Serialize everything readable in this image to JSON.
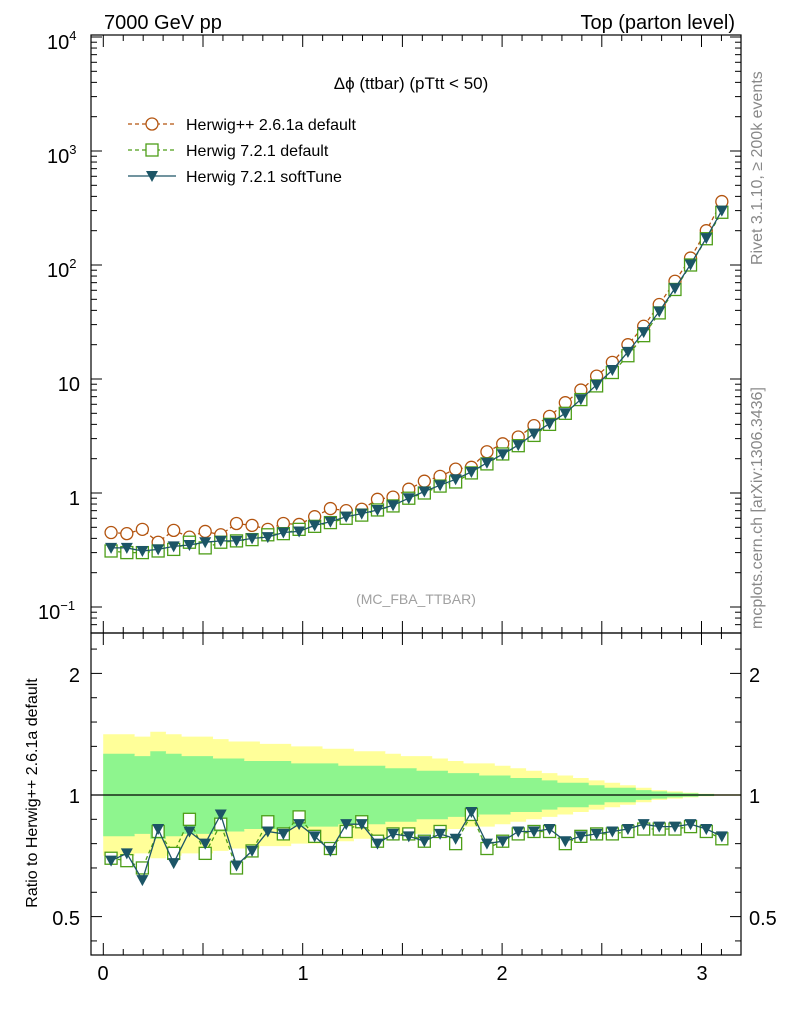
{
  "header": {
    "left": "7000 GeV pp",
    "right": "Top (parton level)"
  },
  "plot_title": "Δϕ (ttbar) (pTtt < 50)",
  "analysis_tag": "(MC_FBA_TTBAR)",
  "side_text": {
    "rivet": "Rivet 3.1.10, ≥ 200k events",
    "mcplots": "mcplots.cern.ch [arXiv:1306.3436]"
  },
  "legend": [
    {
      "name": "Herwig++ 2.6.1a default",
      "color": "#b3540f",
      "marker": "circle-open",
      "line": "dashed"
    },
    {
      "name": "Herwig 7.2.1 default",
      "color": "#4d9e18",
      "marker": "square-open",
      "line": "dashed"
    },
    {
      "name": "Herwig 7.2.1 softTune",
      "color": "#1c5566",
      "marker": "triangle-down-filled",
      "line": "solid"
    }
  ],
  "top_ylabels": {
    "e4_base": "10",
    "e4_exp": "4",
    "e3_base": "10",
    "e3_exp": "3",
    "e2_base": "10",
    "e2_exp": "2",
    "e1": "10",
    "e0": "1",
    "em1_base": "10",
    "em1_exp": "−1"
  },
  "ratio_ylabel": "Ratio to Herwig++ 2.6.1a default",
  "ratio_ylabels": {
    "two": "2",
    "one": "1",
    "half": "0.5"
  },
  "xlabels": {
    "zero": "0",
    "one": "1",
    "two": "2",
    "three": "3"
  },
  "chart_data": [
    {
      "type": "line",
      "panel": "main",
      "title": "Δϕ (ttbar) (pTtt < 50)",
      "yscale": "log",
      "ylim": [
        0.06,
        11000
      ],
      "xlim": [
        -0.05,
        3.2
      ],
      "legend_position": "top-left",
      "x": [
        0.039,
        0.118,
        0.196,
        0.275,
        0.353,
        0.432,
        0.511,
        0.589,
        0.668,
        0.746,
        0.825,
        0.903,
        0.982,
        1.06,
        1.139,
        1.218,
        1.296,
        1.375,
        1.453,
        1.532,
        1.61,
        1.689,
        1.767,
        1.846,
        1.924,
        2.003,
        2.081,
        2.16,
        2.238,
        2.317,
        2.395,
        2.474,
        2.553,
        2.631,
        2.71,
        2.788,
        2.867,
        2.945,
        3.024,
        3.102
      ],
      "series": [
        {
          "name": "Herwig++ 2.6.1a default",
          "values": [
            0.45,
            0.44,
            0.48,
            0.37,
            0.47,
            0.41,
            0.46,
            0.43,
            0.54,
            0.52,
            0.48,
            0.54,
            0.53,
            0.62,
            0.73,
            0.7,
            0.72,
            0.88,
            0.92,
            1.08,
            1.27,
            1.4,
            1.62,
            1.68,
            2.3,
            2.7,
            3.1,
            3.9,
            4.7,
            6.2,
            8.0,
            10.6,
            14.0,
            20.0,
            29.0,
            45.0,
            72.0,
            115,
            200,
            360
          ]
        },
        {
          "name": "Herwig 7.2.1 default",
          "values": [
            0.31,
            0.3,
            0.3,
            0.31,
            0.32,
            0.37,
            0.33,
            0.37,
            0.38,
            0.39,
            0.43,
            0.44,
            0.48,
            0.51,
            0.55,
            0.6,
            0.64,
            0.71,
            0.77,
            0.9,
            1.0,
            1.15,
            1.25,
            1.5,
            1.8,
            2.2,
            2.6,
            3.2,
            4.0,
            5.0,
            6.6,
            8.7,
            11.4,
            16.0,
            24.0,
            38.0,
            61.0,
            100,
            170,
            290
          ]
        },
        {
          "name": "Herwig 7.2.1 softTune",
          "values": [
            0.33,
            0.33,
            0.31,
            0.32,
            0.34,
            0.35,
            0.37,
            0.38,
            0.38,
            0.4,
            0.41,
            0.45,
            0.46,
            0.52,
            0.56,
            0.62,
            0.66,
            0.71,
            0.78,
            0.9,
            1.03,
            1.17,
            1.32,
            1.53,
            1.84,
            2.19,
            2.63,
            3.32,
            4.06,
            5.01,
            6.64,
            8.89,
            12.0,
            17.3,
            25.8,
            39.1,
            62.6,
            101,
            172,
            300
          ]
        }
      ]
    },
    {
      "type": "line",
      "panel": "ratio",
      "ylabel": "Ratio to Herwig++ 2.6.1a default",
      "ylim": [
        0.35,
        2.3
      ],
      "xlim": [
        -0.05,
        3.2
      ],
      "reference": 1.0,
      "band_colors": {
        "outer": "#ffff99",
        "inner": "#8ef58e"
      },
      "band_outer_halfwidth": [
        0.25,
        0.25,
        0.24,
        0.26,
        0.25,
        0.24,
        0.24,
        0.23,
        0.22,
        0.22,
        0.21,
        0.21,
        0.2,
        0.2,
        0.19,
        0.19,
        0.18,
        0.18,
        0.17,
        0.16,
        0.16,
        0.15,
        0.14,
        0.13,
        0.13,
        0.12,
        0.11,
        0.1,
        0.09,
        0.08,
        0.07,
        0.06,
        0.05,
        0.04,
        0.03,
        0.02,
        0.015,
        0.01,
        0.005,
        0.003
      ],
      "band_inner_halfwidth": [
        0.17,
        0.17,
        0.16,
        0.18,
        0.17,
        0.16,
        0.16,
        0.15,
        0.15,
        0.14,
        0.14,
        0.14,
        0.13,
        0.13,
        0.13,
        0.12,
        0.12,
        0.12,
        0.11,
        0.11,
        0.1,
        0.1,
        0.09,
        0.09,
        0.08,
        0.08,
        0.07,
        0.07,
        0.06,
        0.05,
        0.05,
        0.04,
        0.03,
        0.03,
        0.02,
        0.015,
        0.01,
        0.007,
        0.004,
        0.002
      ],
      "series": [
        {
          "name": "Herwig 7.2.1 default",
          "values": [
            0.74,
            0.73,
            0.7,
            0.85,
            0.76,
            0.9,
            0.76,
            0.88,
            0.7,
            0.77,
            0.89,
            0.84,
            0.91,
            0.83,
            0.78,
            0.85,
            0.89,
            0.81,
            0.84,
            0.84,
            0.81,
            0.85,
            0.8,
            0.92,
            0.78,
            0.81,
            0.84,
            0.85,
            0.85,
            0.8,
            0.83,
            0.84,
            0.84,
            0.85,
            0.86,
            0.86,
            0.86,
            0.87,
            0.85,
            0.82
          ]
        },
        {
          "name": "Herwig 7.2.1 softTune",
          "values": [
            0.73,
            0.76,
            0.65,
            0.86,
            0.72,
            0.85,
            0.8,
            0.92,
            0.71,
            0.77,
            0.85,
            0.84,
            0.88,
            0.83,
            0.77,
            0.88,
            0.88,
            0.8,
            0.84,
            0.83,
            0.81,
            0.84,
            0.82,
            0.93,
            0.8,
            0.81,
            0.85,
            0.85,
            0.86,
            0.81,
            0.83,
            0.84,
            0.85,
            0.86,
            0.88,
            0.87,
            0.87,
            0.88,
            0.86,
            0.83
          ]
        }
      ]
    }
  ]
}
